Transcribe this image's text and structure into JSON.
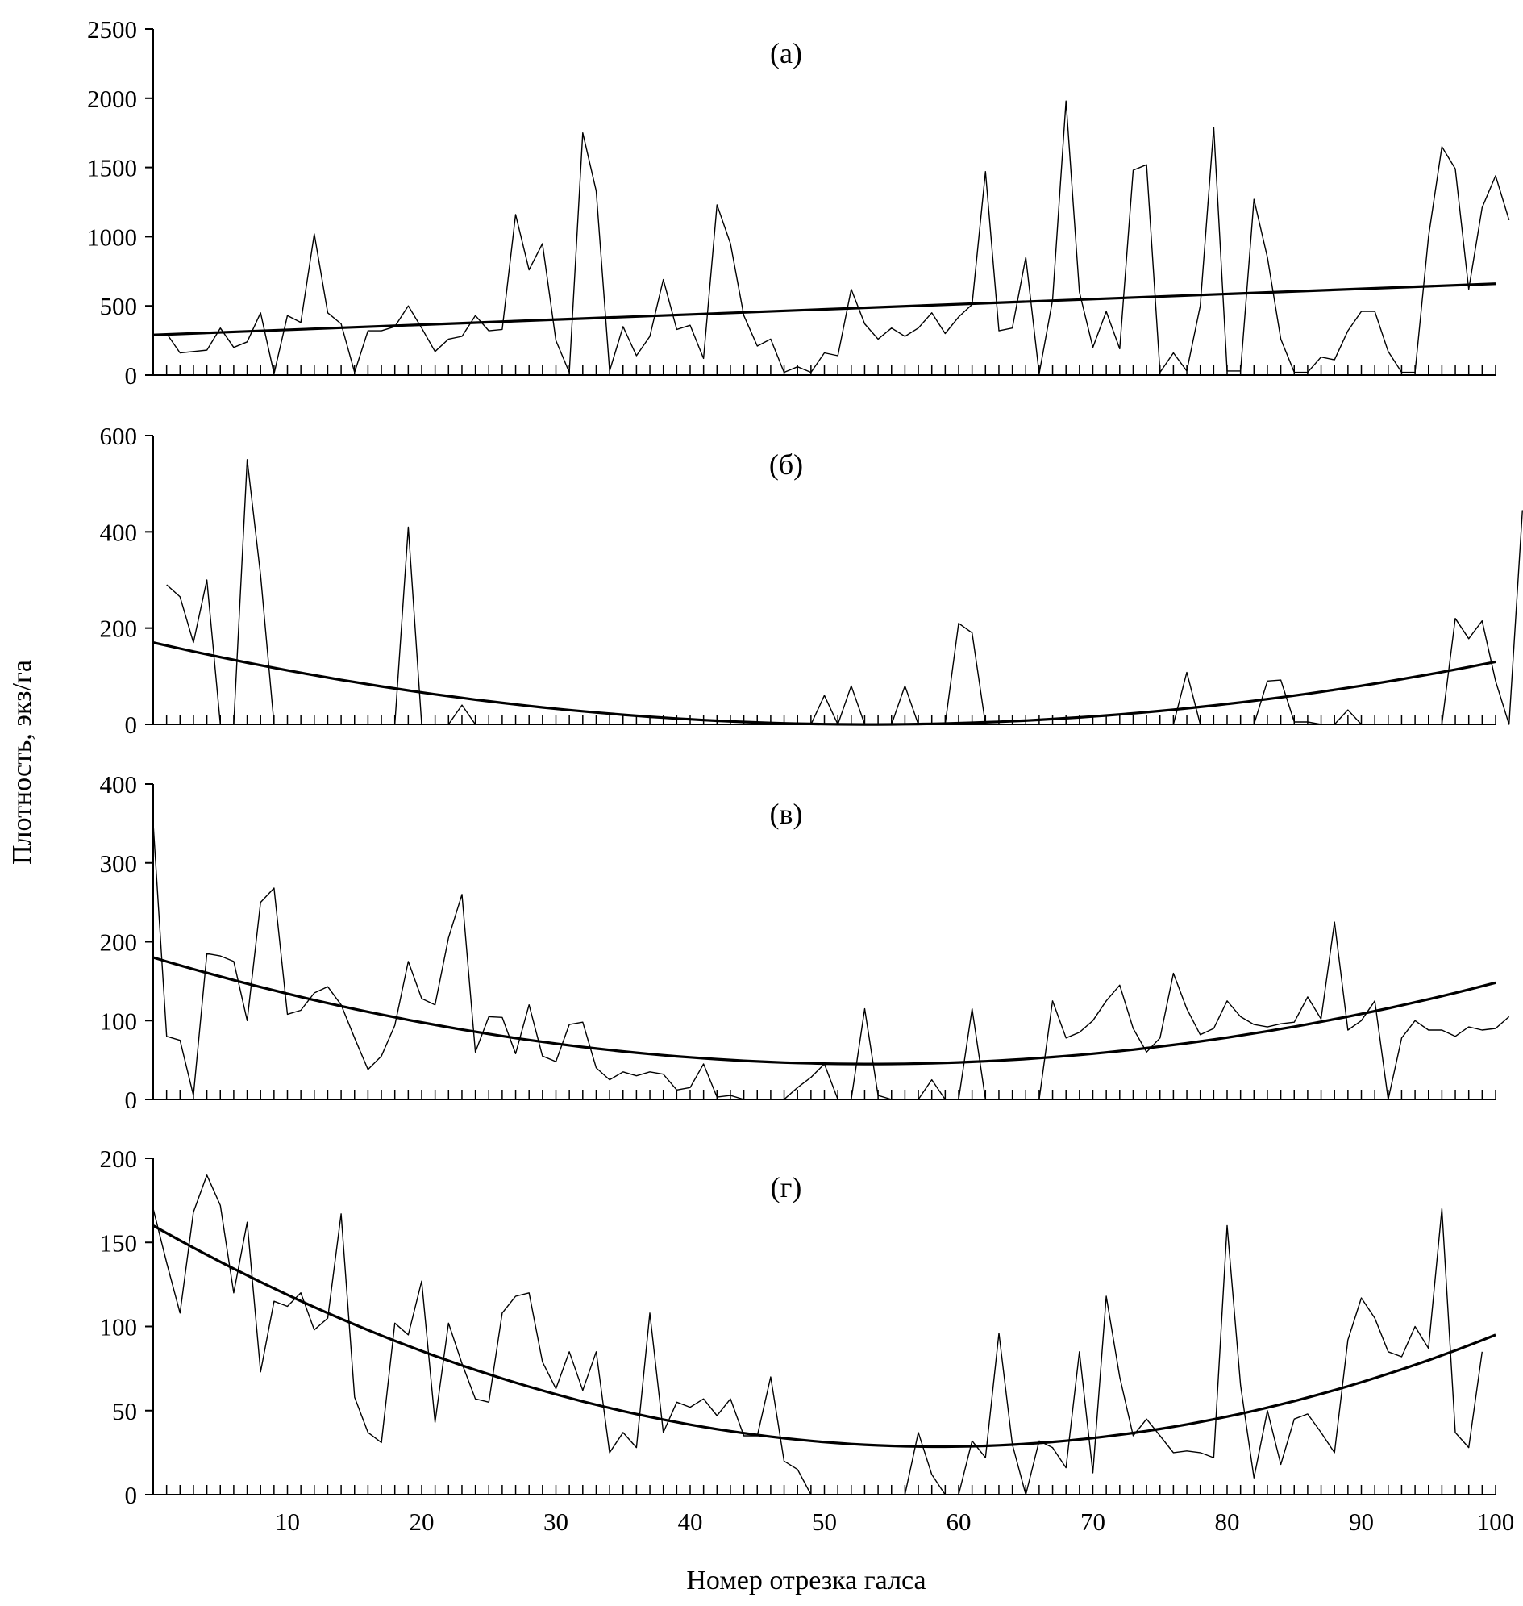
{
  "chart_data": {
    "ylabel": "Плотность, экз/га",
    "xlabel": "Номер отрезка галса",
    "x_ticks": [
      "10",
      "20",
      "30",
      "40",
      "50",
      "60",
      "70",
      "80",
      "90",
      "100"
    ],
    "x_tick_values": [
      10,
      20,
      30,
      40,
      50,
      60,
      70,
      80,
      90,
      100
    ],
    "xlim": [
      0,
      100
    ],
    "panels": [
      {
        "type": "line",
        "title": "(а)",
        "ylim": [
          0,
          2500
        ],
        "y_ticks": [
          "0",
          "500",
          "1000",
          "1500",
          "2000",
          "2500"
        ],
        "y_tick_values": [
          0,
          500,
          1000,
          1500,
          2000,
          2500
        ],
        "series": [
          {
            "name": "observed",
            "x_start": 1,
            "values": [
              300,
              160,
              170,
              180,
              340,
              200,
              240,
              450,
              10,
              430,
              380,
              1020,
              450,
              370,
              20,
              320,
              320,
              350,
              500,
              340,
              170,
              260,
              280,
              430,
              320,
              330,
              1160,
              760,
              950,
              250,
              20,
              1750,
              1330,
              30,
              350,
              140,
              280,
              690,
              330,
              360,
              120,
              1230,
              950,
              430,
              210,
              260,
              20,
              60,
              20,
              160,
              140,
              620,
              370,
              260,
              340,
              280,
              340,
              450,
              300,
              420,
              510,
              1470,
              320,
              340,
              850,
              10,
              540,
              1980,
              600,
              200,
              460,
              190,
              1480,
              1520,
              20,
              160,
              30,
              500,
              1790,
              30,
              30,
              1270,
              850,
              260,
              20,
              20,
              130,
              110,
              320,
              460,
              460,
              170,
              20,
              20,
              1000,
              1650,
              1490,
              620,
              1210,
              1440,
              1120
            ]
          },
          {
            "name": "trend",
            "trend": [
              290,
              660
            ]
          }
        ]
      },
      {
        "type": "line",
        "title": "(б)",
        "ylim": [
          0,
          600
        ],
        "y_ticks": [
          "0",
          "200",
          "400",
          "600"
        ],
        "y_tick_values": [
          0,
          200,
          400,
          600
        ],
        "series": [
          {
            "name": "observed",
            "x_start": 1,
            "values": [
              290,
              265,
              170,
              300,
              0,
              0,
              550,
              310,
              0,
              0,
              0,
              0,
              0,
              0,
              0,
              0,
              0,
              0,
              410,
              0,
              0,
              0,
              40,
              0,
              0,
              0,
              0,
              0,
              0,
              0,
              0,
              0,
              0,
              0,
              0,
              0,
              0,
              0,
              0,
              0,
              0,
              0,
              0,
              0,
              0,
              0,
              0,
              0,
              0,
              60,
              0,
              80,
              0,
              0,
              0,
              80,
              0,
              0,
              0,
              210,
              190,
              0,
              0,
              0,
              0,
              0,
              0,
              0,
              0,
              0,
              0,
              0,
              0,
              0,
              0,
              0,
              108,
              0,
              0,
              0,
              0,
              0,
              90,
              92,
              5,
              5,
              0,
              0,
              30,
              0,
              0,
              0,
              0,
              0,
              0,
              0,
              220,
              178,
              215,
              90,
              0,
              445
            ]
          },
          {
            "name": "trend",
            "trend_quadratic": [
              170,
              0,
              130
            ]
          }
        ]
      },
      {
        "type": "line",
        "title": "(в)",
        "ylim": [
          0,
          400
        ],
        "y_ticks": [
          "0",
          "100",
          "200",
          "300",
          "400"
        ],
        "y_tick_values": [
          0,
          100,
          200,
          300,
          400
        ],
        "series": [
          {
            "name": "observed",
            "x_start": 0,
            "values": [
              350,
              80,
              75,
              5,
              185,
              182,
              175,
              100,
              250,
              268,
              108,
              113,
              135,
              143,
              120,
              78,
              38,
              55,
              94,
              175,
              128,
              120,
              205,
              260,
              60,
              105,
              104,
              58,
              120,
              55,
              48,
              95,
              98,
              40,
              25,
              35,
              30,
              35,
              32,
              12,
              15,
              45,
              3,
              5,
              0,
              0,
              0,
              0,
              15,
              28,
              45,
              0,
              0,
              115,
              5,
              0,
              0,
              0,
              25,
              0,
              0,
              115,
              0,
              0,
              0,
              0,
              0,
              125,
              78,
              85,
              100,
              125,
              145,
              90,
              60,
              78,
              160,
              115,
              82,
              90,
              125,
              105,
              95,
              92,
              96,
              98,
              130,
              102,
              225,
              88,
              100,
              125,
              0,
              78,
              100,
              88,
              88,
              80,
              92,
              88,
              90,
              105
            ]
          },
          {
            "name": "trend",
            "trend_quadratic": [
              180,
              45,
              148
            ]
          }
        ]
      },
      {
        "type": "line",
        "title": "(г)",
        "ylim": [
          0,
          200
        ],
        "y_ticks": [
          "0",
          "50",
          "100",
          "150",
          "200"
        ],
        "y_tick_values": [
          0,
          50,
          100,
          150,
          200
        ],
        "series": [
          {
            "name": "observed",
            "x_start": 0,
            "values": [
              170,
              138,
              108,
              168,
              190,
              172,
              120,
              162,
              73,
              115,
              112,
              120,
              98,
              105,
              167,
              58,
              37,
              31,
              102,
              95,
              127,
              43,
              102,
              78,
              57,
              55,
              108,
              118,
              120,
              79,
              63,
              85,
              62,
              85,
              25,
              37,
              28,
              108,
              37,
              55,
              52,
              57,
              47,
              57,
              35,
              35,
              70,
              20,
              15,
              0,
              0,
              0,
              0,
              0,
              0,
              0,
              0,
              37,
              12,
              0,
              0,
              32,
              22,
              96,
              30,
              0,
              32,
              28,
              16,
              85,
              13,
              118,
              70,
              35,
              45,
              35,
              25,
              26,
              25,
              22,
              160,
              65,
              10,
              50,
              18,
              45,
              48,
              37,
              25,
              92,
              117,
              105,
              85,
              82,
              100,
              87,
              170,
              37,
              28,
              85
            ]
          },
          {
            "name": "trend",
            "trend_quadratic": [
              160,
              29,
              95
            ]
          }
        ]
      }
    ]
  }
}
